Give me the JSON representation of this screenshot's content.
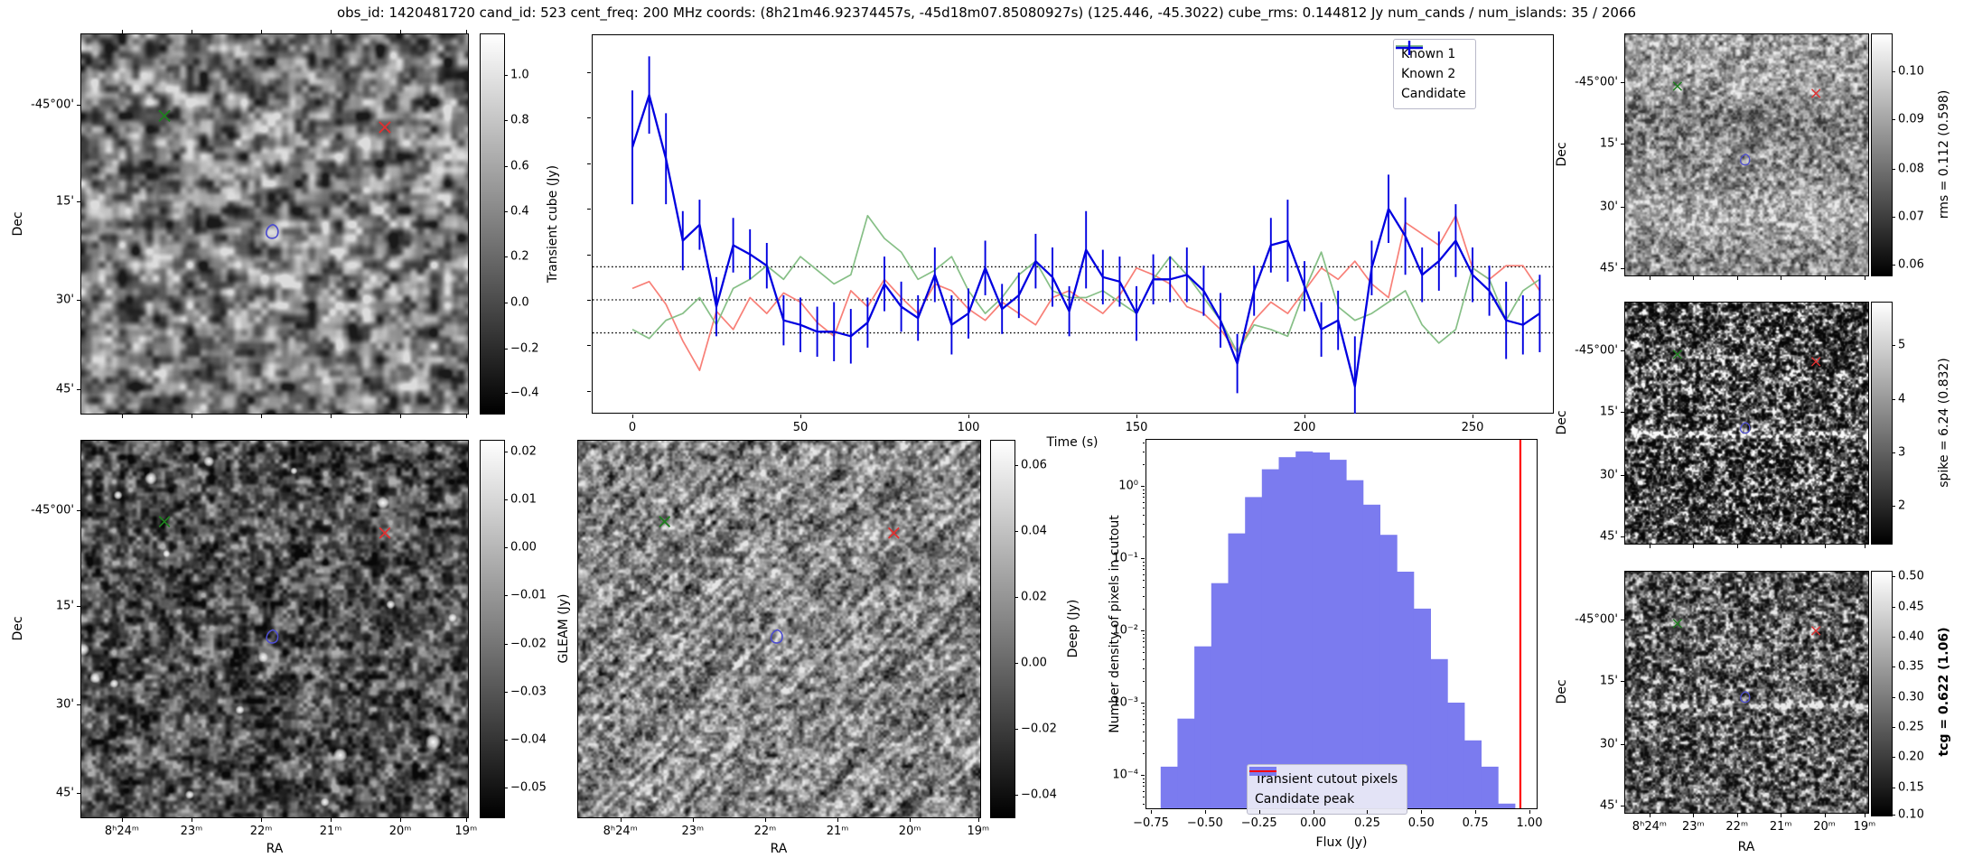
{
  "title": "obs_id: 1420481720 cand_id: 523 cent_freq: 200 MHz coords: (8h21m46.92374457s, -45d18m07.85080927s) (125.446, -45.3022) cube_rms: 0.144812 Jy num_cands / num_islands: 35 / 2066",
  "colors": {
    "known1": "#f87f77",
    "known2": "#86bf86",
    "candidate": "#0000e0",
    "hist_bar": "#7b7bef",
    "peak_line": "#ff0000",
    "marker_green": "#1e7e1e",
    "marker_red": "#e03131",
    "contour_blue": "#4d4dd0"
  },
  "axes_shared": {
    "dec_ticks": [
      "-45°00'",
      "15'",
      "30'",
      "45'"
    ],
    "ra_ticks": [
      "8ʰ24ᵐ",
      "23ᵐ",
      "22ᵐ",
      "21ᵐ",
      "20ᵐ",
      "19ᵐ"
    ]
  },
  "panels": {
    "transient": {
      "ylabel": "Dec",
      "colorbar": {
        "label": "Transient cube (Jy)",
        "ticks": [
          "1.0",
          "0.8",
          "0.6",
          "0.4",
          "0.2",
          "0.0",
          "−0.2",
          "−0.4"
        ]
      }
    },
    "gleam": {
      "ylabel": "Dec",
      "xlabel": "RA",
      "colorbar": {
        "label": "GLEAM (Jy)",
        "ticks": [
          "0.02",
          "0.01",
          "0.00",
          "−0.01",
          "−0.02",
          "−0.03",
          "−0.04",
          "−0.05"
        ]
      }
    },
    "deep": {
      "xlabel": "RA",
      "colorbar": {
        "label": "Deep (Jy)",
        "ticks": [
          "0.06",
          "0.04",
          "0.02",
          "0.00",
          "−0.02",
          "−0.04"
        ]
      }
    },
    "rms": {
      "ylabel": "Dec",
      "colorbar": {
        "label": "rms = 0.112 (0.598)",
        "ticks": [
          "0.10",
          "0.09",
          "0.08",
          "0.07",
          "0.06"
        ]
      }
    },
    "spike": {
      "ylabel": "Dec",
      "colorbar": {
        "label": "spike = 6.24 (0.832)",
        "ticks": [
          "5",
          "4",
          "3",
          "2"
        ]
      }
    },
    "tcg": {
      "ylabel": "Dec",
      "xlabel": "RA",
      "colorbar": {
        "label": "tcg = 0.622 (1.06)",
        "ticks": [
          "0.50",
          "0.45",
          "0.40",
          "0.35",
          "0.30",
          "0.25",
          "0.20",
          "0.15",
          "0.10"
        ]
      }
    },
    "lightcurve": {
      "xlabel": "Time (s)",
      "legend": [
        "Known 1",
        "Known 2",
        "Candidate"
      ]
    },
    "histogram": {
      "xlabel": "Flux (Jy)",
      "ylabel": "Number density of pixels in cutout",
      "legend": [
        "Transient cutout pixels",
        "Candidate peak"
      ]
    }
  },
  "chart_data": [
    {
      "type": "line",
      "name": "lightcurve",
      "xlabel": "Time (s)",
      "x_start": 0,
      "x_step": 5,
      "x_ticks": [
        0,
        50,
        100,
        150,
        200,
        250
      ],
      "ylim": [
        -0.5,
        1.17
      ],
      "hlines": [
        0.145,
        0.0,
        -0.145
      ],
      "legend_position": "upper right",
      "series": [
        {
          "name": "Known 1",
          "values": [
            0.05,
            0.08,
            -0.02,
            -0.18,
            -0.31,
            -0.05,
            -0.13,
            0.01,
            -0.06,
            0.03,
            -0.01,
            -0.1,
            -0.16,
            0.04,
            -0.03,
            0.09,
            0.01,
            -0.06,
            0.07,
            0.04,
            -0.04,
            -0.09,
            -0.01,
            -0.06,
            -0.11,
            0.01,
            0.04,
            -0.01,
            -0.06,
            0.02,
            0.14,
            0.11,
            0.07,
            -0.03,
            -0.06,
            -0.13,
            -0.23,
            -0.09,
            -0.01,
            -0.06,
            0.04,
            0.14,
            0.09,
            0.17,
            0.07,
            0.01,
            0.34,
            0.29,
            0.24,
            0.37,
            0.14,
            0.09,
            0.15,
            0.15,
            0.04
          ]
        },
        {
          "name": "Known 2",
          "values": [
            -0.13,
            -0.17,
            -0.09,
            -0.06,
            0.01,
            -0.11,
            0.05,
            0.09,
            0.15,
            0.09,
            0.19,
            0.13,
            0.07,
            0.11,
            0.37,
            0.27,
            0.21,
            0.09,
            0.13,
            0.19,
            0.04,
            -0.06,
            0.01,
            0.11,
            0.17,
            0.04,
            0.01,
            0.01,
            0.04,
            -0.01,
            -0.06,
            0.09,
            0.19,
            0.11,
            0.01,
            -0.09,
            -0.23,
            -0.11,
            -0.13,
            -0.16,
            0.04,
            0.21,
            -0.03,
            -0.09,
            -0.06,
            -0.01,
            0.04,
            -0.11,
            -0.19,
            -0.13,
            0.14,
            0.09,
            -0.09,
            0.04,
            0.09
          ]
        },
        {
          "name": "Candidate",
          "values": [
            0.67,
            0.9,
            0.62,
            0.26,
            0.33,
            -0.03,
            0.24,
            0.2,
            0.15,
            -0.09,
            -0.11,
            -0.14,
            -0.14,
            -0.16,
            -0.1,
            0.07,
            -0.03,
            -0.08,
            0.11,
            -0.11,
            -0.06,
            0.14,
            -0.04,
            0.02,
            0.17,
            0.1,
            -0.05,
            0.22,
            0.1,
            0.08,
            -0.06,
            0.09,
            0.09,
            0.11,
            0.04,
            -0.09,
            -0.28,
            0.04,
            0.24,
            0.26,
            0.06,
            -0.13,
            -0.09,
            -0.38,
            0.14,
            0.4,
            0.28,
            0.11,
            0.17,
            0.26,
            0.11,
            0.04,
            -0.09,
            -0.11,
            -0.06
          ],
          "errors": [
            0.25,
            0.17,
            0.2,
            0.13,
            0.11,
            0.13,
            0.12,
            0.11,
            0.1,
            0.11,
            0.12,
            0.11,
            0.13,
            0.12,
            0.11,
            0.12,
            0.11,
            0.1,
            0.12,
            0.13,
            0.11,
            0.12,
            0.11,
            0.1,
            0.12,
            0.13,
            0.11,
            0.17,
            0.12,
            0.11,
            0.12,
            0.11,
            0.1,
            0.12,
            0.11,
            0.12,
            0.13,
            0.11,
            0.12,
            0.18,
            0.11,
            0.12,
            0.13,
            0.22,
            0.12,
            0.15,
            0.17,
            0.12,
            0.13,
            0.16,
            0.12,
            0.11,
            0.17,
            0.13,
            0.17
          ]
        }
      ]
    },
    {
      "type": "bar",
      "name": "flux-histogram",
      "xlabel": "Flux (Jy)",
      "ylabel": "Number density of pixels in cutout",
      "yscale": "log",
      "bin_start": -0.705,
      "bin_width": 0.078,
      "values": [
        0.00013,
        0.0006,
        0.006,
        0.045,
        0.22,
        0.7,
        1.7,
        2.5,
        3.0,
        2.9,
        2.3,
        1.2,
        0.55,
        0.21,
        0.065,
        0.02,
        0.004,
        0.001,
        0.0003,
        0.00013,
        4e-05
      ],
      "vline": 0.958,
      "x_ticks": [
        "−0.75",
        "−0.50",
        "−0.25",
        "0.00",
        "0.25",
        "0.50",
        "0.75",
        "1.00"
      ],
      "y_ticks": [
        "10⁰",
        "10⁻¹",
        "10⁻²",
        "10⁻³",
        "10⁻⁴"
      ],
      "legend_position": "lower center"
    }
  ],
  "markers": {
    "green_cross": [
      0.215,
      0.215
    ],
    "red_cross": [
      0.785,
      0.245
    ],
    "contour": [
      0.495,
      0.52
    ]
  }
}
